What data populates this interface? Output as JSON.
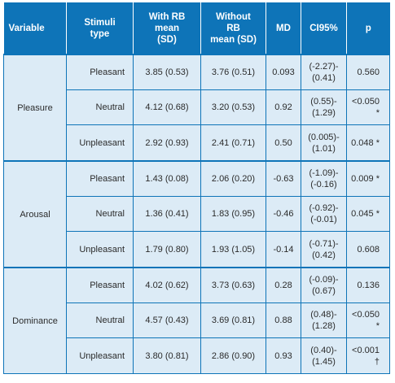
{
  "table": {
    "headers": [
      "Variable",
      "Stimuli\ntype",
      "With RB\nmean\n(SD)",
      "Without\nRB\nmean (SD)",
      "MD",
      "CI95%",
      "p"
    ],
    "groups": [
      {
        "variable": "Pleasure",
        "rows": [
          {
            "stimuli": "Pleasant",
            "with_rb": "3.85 (0.53)",
            "without_rb": "3.76 (0.51)",
            "md": "0.093",
            "ci": "(-2.27)-\n(0.41)",
            "p": "0.560"
          },
          {
            "stimuli": "Neutral",
            "with_rb": "4.12 (0.68)",
            "without_rb": "3.20 (0.53)",
            "md": "0.92",
            "ci": "(0.55)-\n(1.29)",
            "p": "<0.050 *"
          },
          {
            "stimuli": "Unpleasant",
            "with_rb": "2.92 (0.93)",
            "without_rb": "2.41 (0.71)",
            "md": "0.50",
            "ci": "(0.005)-\n(1.01)",
            "p": "0.048 *"
          }
        ]
      },
      {
        "variable": "Arousal",
        "rows": [
          {
            "stimuli": "Pleasant",
            "with_rb": "1.43 (0.08)",
            "without_rb": "2.06 (0.20)",
            "md": "-0.63",
            "ci": "(-1.09)-\n(-0.16)",
            "p": "0.009 *"
          },
          {
            "stimuli": "Neutral",
            "with_rb": "1.36 (0.41)",
            "without_rb": "1.83 (0.95)",
            "md": "-0.46",
            "ci": "(-0.92)-\n(-0.01)",
            "p": "0.045 *"
          },
          {
            "stimuli": "Unpleasant",
            "with_rb": "1.79 (0.80)",
            "without_rb": "1.93 (1.05)",
            "md": "-0.14",
            "ci": "(-0.71)-\n(0.42)",
            "p": "0.608"
          }
        ]
      },
      {
        "variable": "Dominance",
        "rows": [
          {
            "stimuli": "Pleasant",
            "with_rb": "4.02 (0.62)",
            "without_rb": "3.73 (0.63)",
            "md": "0.28",
            "ci": "(-0.09)-\n(0.67)",
            "p": "0.136"
          },
          {
            "stimuli": "Neutral",
            "with_rb": "4.57 (0.43)",
            "without_rb": "3.69 (0.81)",
            "md": "0.88",
            "ci": "(0.48)-\n(1.28)",
            "p": "<0.050 *"
          },
          {
            "stimuli": "Unpleasant",
            "with_rb": "3.80 (0.81)",
            "without_rb": "2.86 (0.90)",
            "md": "0.93",
            "ci": "(0.40)-\n(1.45)",
            "p": "<0.001 †"
          }
        ]
      }
    ]
  },
  "colors": {
    "header_bg": "#0e74b8",
    "cell_bg": "#dcebf6",
    "border": "#0e74b8"
  }
}
